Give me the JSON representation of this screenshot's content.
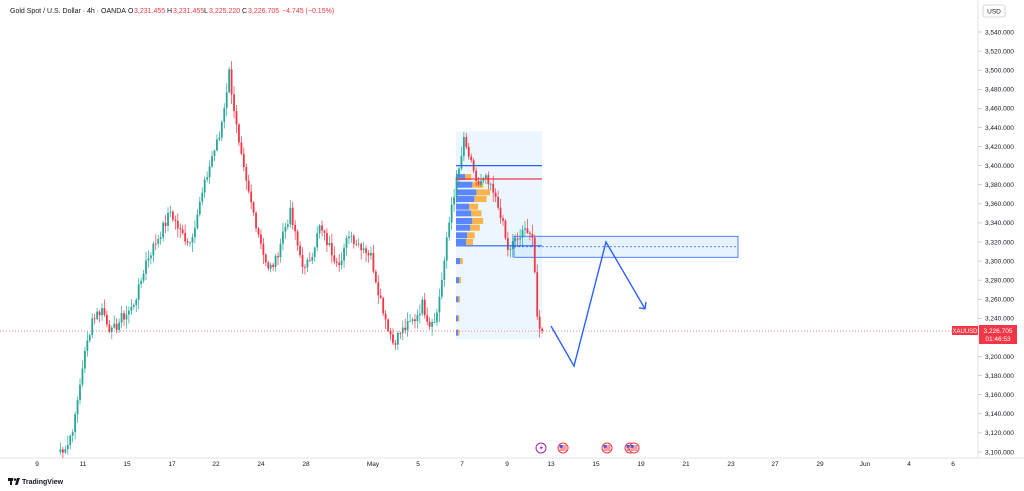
{
  "header": {
    "symbol_title": "Gold Spot / U.S. Dollar · 4h · OANDA",
    "o_label": "O",
    "o_value": "3,231.455",
    "h_label": "H",
    "h_value": "3,231.455",
    "l_label": "L",
    "l_value": "3,225.220",
    "c_label": "C",
    "c_value": "3,226.705",
    "change": "−4.745 (−0.15%)",
    "currency": "USD"
  },
  "price_tag": {
    "symbol": "XAUUSD",
    "price": "3,226.705",
    "countdown": "01:46:53"
  },
  "footer": {
    "brand": "TradingView"
  },
  "colors": {
    "up": "#26a69a",
    "down": "#f23645",
    "drawing": "#2962ff",
    "zone_fill": "#bbdefb",
    "range_fill": "#e3f2fd",
    "profile_blue": "#2962ff",
    "profile_orange": "#ff9800"
  },
  "chart_data": {
    "type": "candlestick",
    "title": "Gold Spot / U.S. Dollar · 4h · OANDA",
    "ylim": [
      3100,
      3555
    ],
    "y_ticks": [
      3100,
      3120,
      3140,
      3160,
      3180,
      3200,
      3220,
      3240,
      3260,
      3280,
      3300,
      3320,
      3340,
      3360,
      3380,
      3400,
      3420,
      3440,
      3460,
      3480,
      3500,
      3520,
      3540
    ],
    "x_tick_labels": [
      "9",
      "11",
      "15",
      "17",
      "22",
      "24",
      "28",
      "May",
      "5",
      "7",
      "9",
      "13",
      "15",
      "19",
      "21",
      "23",
      "27",
      "29",
      "Jun",
      "4",
      "6"
    ],
    "last_price": 3226.705,
    "anchors": [
      [
        0,
        3100
      ],
      [
        4,
        3108
      ],
      [
        7,
        3135
      ],
      [
        10,
        3190
      ],
      [
        14,
        3240
      ],
      [
        18,
        3250
      ],
      [
        22,
        3225
      ],
      [
        26,
        3240
      ],
      [
        30,
        3250
      ],
      [
        33,
        3270
      ],
      [
        36,
        3300
      ],
      [
        40,
        3320
      ],
      [
        44,
        3340
      ],
      [
        46,
        3352
      ],
      [
        50,
        3330
      ],
      [
        54,
        3320
      ],
      [
        58,
        3360
      ],
      [
        61,
        3390
      ],
      [
        63,
        3410
      ],
      [
        66,
        3430
      ],
      [
        69,
        3480
      ],
      [
        70,
        3498
      ],
      [
        72,
        3460
      ],
      [
        74,
        3420
      ],
      [
        77,
        3380
      ],
      [
        80,
        3350
      ],
      [
        83,
        3320
      ],
      [
        86,
        3290
      ],
      [
        89,
        3300
      ],
      [
        92,
        3330
      ],
      [
        95,
        3350
      ],
      [
        98,
        3315
      ],
      [
        101,
        3290
      ],
      [
        104,
        3310
      ],
      [
        107,
        3335
      ],
      [
        110,
        3320
      ],
      [
        113,
        3305
      ],
      [
        116,
        3300
      ],
      [
        119,
        3330
      ],
      [
        122,
        3320
      ],
      [
        125,
        3315
      ],
      [
        128,
        3305
      ],
      [
        131,
        3270
      ],
      [
        134,
        3240
      ],
      [
        137,
        3215
      ],
      [
        140,
        3225
      ],
      [
        143,
        3232
      ],
      [
        146,
        3240
      ],
      [
        149,
        3255
      ],
      [
        152,
        3235
      ],
      [
        155,
        3245
      ],
      [
        158,
        3300
      ],
      [
        161,
        3360
      ],
      [
        164,
        3395
      ],
      [
        166,
        3425
      ],
      [
        168,
        3410
      ],
      [
        170,
        3390
      ],
      [
        172,
        3380
      ],
      [
        175,
        3385
      ],
      [
        178,
        3370
      ],
      [
        181,
        3350
      ],
      [
        184,
        3310
      ],
      [
        186,
        3318
      ],
      [
        189,
        3325
      ],
      [
        192,
        3335
      ],
      [
        194,
        3325
      ],
      [
        196,
        3240
      ],
      [
        198,
        3226.705
      ]
    ],
    "volume_profile_levels": [
      3388,
      3380,
      3372,
      3365,
      3357,
      3350,
      3342,
      3335,
      3327,
      3320,
      3300,
      3280,
      3260,
      3240,
      3225
    ],
    "volume_profile_values": [
      0.45,
      0.8,
      1.0,
      0.9,
      0.65,
      0.75,
      0.8,
      0.7,
      0.55,
      0.5,
      0.2,
      0.15,
      0.12,
      0.1,
      0.1
    ],
    "levels": {
      "upper_line": 3400,
      "middle_line": 3386,
      "lower_line": 3316,
      "zone_top": 3326,
      "zone_bottom": 3304,
      "zone_mid": 3315
    },
    "projection_path": [
      [
        3232
      ],
      [
        3190
      ],
      [
        3320
      ],
      [
        3250
      ]
    ],
    "grid": false,
    "legend": "none"
  }
}
